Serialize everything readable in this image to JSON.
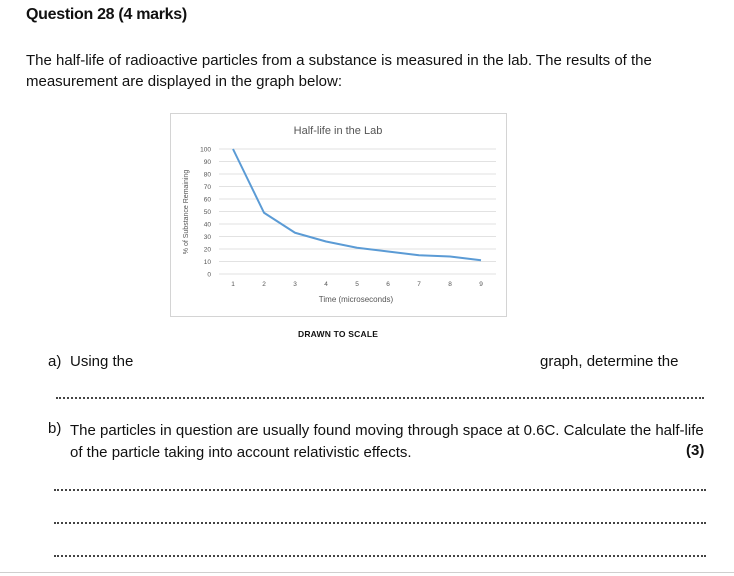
{
  "question": {
    "title": "Question 28 (4 marks)",
    "intro": "The half-life of radioactive particles from a substance is measured in the lab. The results of the measurement are displayed in the graph below:",
    "scale_note": "DRAWN TO SCALE",
    "part_a": {
      "label": "a)",
      "text_start": "Using the",
      "text_end": "graph, determine the"
    },
    "part_b": {
      "label": "b)",
      "text": "The particles in question are usually found moving through space at 0.6C. Calculate the half-life of the particle taking into account relativistic effects.",
      "marks": "(3)"
    }
  },
  "chart_data": {
    "type": "line",
    "title": "Half-life in the Lab",
    "xlabel": "Time (microseconds)",
    "ylabel": "% of Substance Remaining",
    "x": [
      1,
      2,
      3,
      4,
      5,
      6,
      7,
      8,
      9
    ],
    "x_ticks": [
      "1",
      "2",
      "3",
      "4",
      "5",
      "6",
      "7",
      "8",
      "9"
    ],
    "y_ticks": [
      "0",
      "10",
      "20",
      "30",
      "40",
      "50",
      "60",
      "70",
      "80",
      "90",
      "100"
    ],
    "ylim": [
      0,
      100
    ],
    "grid": true,
    "legend": "none",
    "series": [
      {
        "values": [
          100,
          49,
          33,
          26,
          21,
          18,
          15,
          14,
          11
        ],
        "color": "#5b9bd5"
      }
    ]
  }
}
